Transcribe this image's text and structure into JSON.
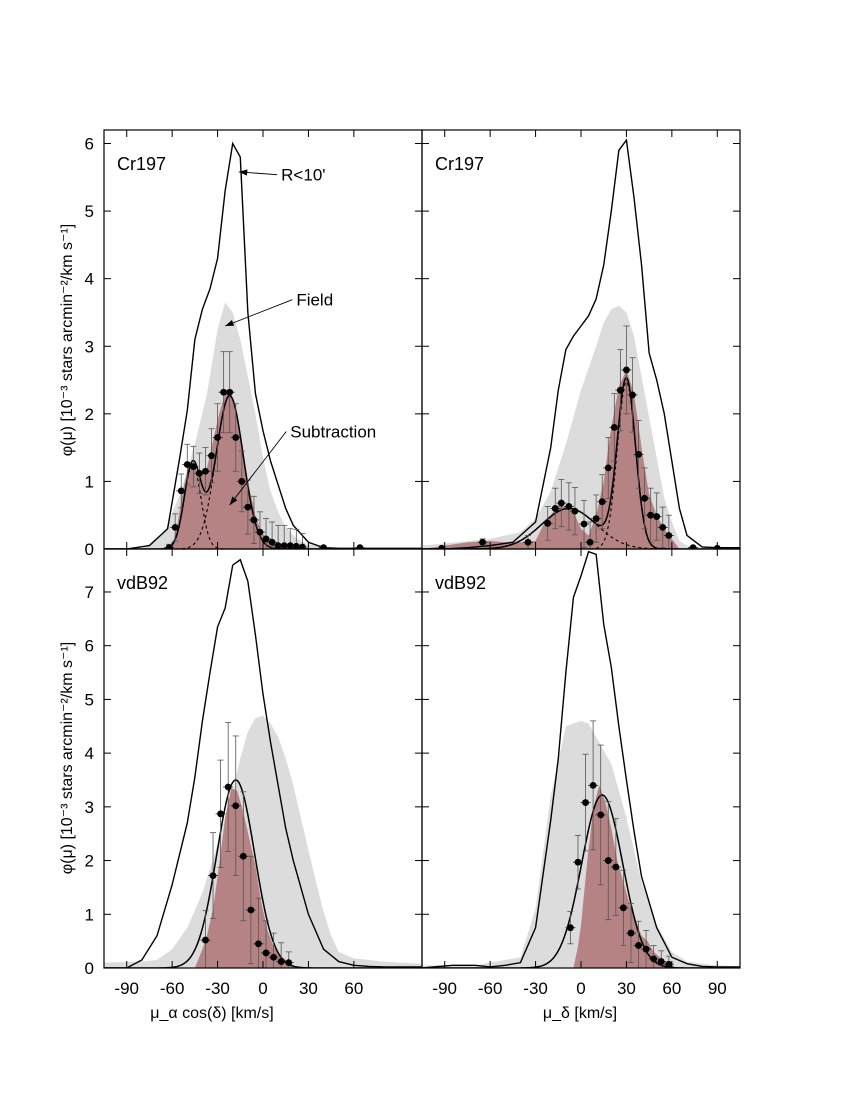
{
  "figure": {
    "ylabel": "φ(μ) [10⁻³ stars arcmin⁻²/km s⁻¹]",
    "xlabel_left": "μ_α cos(δ) [km/s]",
    "xlabel_right": "μ_δ [km/s]"
  },
  "chart_data": [
    {
      "id": "cr197-pmra",
      "type": "line",
      "cluster_label": "Cr197",
      "xlim": [
        -105,
        105
      ],
      "ylim": [
        0,
        6.2
      ],
      "xticks": [
        -90,
        -60,
        -30,
        0,
        30,
        60
      ],
      "yticks": [
        0,
        1,
        2,
        3,
        4,
        5,
        6
      ],
      "annotations": [
        {
          "text": "R<10'",
          "tx": 12,
          "ty": 5.45,
          "ax": -16,
          "ay": 5.58
        },
        {
          "text": "Field",
          "tx": 22,
          "ty": 3.6,
          "ax": -25,
          "ay": 3.3
        },
        {
          "text": "Subtraction",
          "tx": 18,
          "ty": 1.65,
          "ax": -22,
          "ay": 0.65
        }
      ],
      "field": {
        "x": [
          -105,
          -80,
          -65,
          -55,
          -45,
          -37,
          -30,
          -25,
          -20,
          -15,
          -10,
          -5,
          0,
          5,
          10,
          15,
          20,
          25,
          30,
          40,
          50,
          60,
          70,
          80,
          90,
          105
        ],
        "y": [
          0,
          0,
          0.25,
          0.8,
          1.55,
          2.3,
          3.25,
          3.65,
          3.5,
          3.1,
          2.55,
          2.0,
          1.35,
          0.85,
          0.55,
          0.32,
          0.2,
          0.12,
          0.07,
          0.03,
          0.02,
          0.01,
          0,
          0,
          0,
          0
        ]
      },
      "total": {
        "x": [
          -105,
          -90,
          -75,
          -63,
          -55,
          -50,
          -45,
          -40,
          -35,
          -30,
          -25,
          -20,
          -15,
          -10,
          -5,
          0,
          5,
          10,
          15,
          20,
          30,
          40,
          50,
          60,
          70,
          80,
          90,
          105
        ],
        "y": [
          0,
          0,
          0.05,
          0.3,
          1.35,
          2.05,
          3.1,
          3.55,
          3.85,
          4.3,
          5.3,
          6.0,
          5.8,
          3.5,
          2.3,
          1.75,
          1.3,
          0.95,
          0.6,
          0.35,
          0.1,
          0.02,
          0.01,
          0.01,
          0.01,
          0.01,
          0.01,
          0.01
        ]
      },
      "subtraction": {
        "x": [
          -65,
          -60,
          -57,
          -53,
          -49,
          -45,
          -41,
          -37,
          -33,
          -29,
          -25,
          -21,
          -17,
          -13,
          -9,
          -5,
          -1,
          5,
          10,
          20,
          30,
          40,
          50,
          60,
          65
        ],
        "y": [
          0,
          0.05,
          0.3,
          0.85,
          1.25,
          1.2,
          1.1,
          1.2,
          1.6,
          2.0,
          2.3,
          2.3,
          1.95,
          1.4,
          0.9,
          0.5,
          0.25,
          0.1,
          0.05,
          0.02,
          0.01,
          0.01,
          0.01,
          0,
          0
        ]
      },
      "fit_components": [
        {
          "mu": -46.5,
          "sigma": 5.5,
          "amp": 1.25
        },
        {
          "mu": -22.0,
          "sigma": 9.0,
          "amp": 2.27
        }
      ],
      "points": {
        "x": [
          -62,
          -58,
          -54,
          -50,
          -46,
          -42,
          -38,
          -34,
          -30,
          -26,
          -22,
          -18,
          -14,
          -10,
          -6,
          -2,
          2,
          6,
          10,
          14,
          18,
          22,
          26,
          40,
          64
        ],
        "y": [
          0.02,
          0.32,
          0.86,
          1.25,
          1.22,
          1.12,
          1.15,
          1.38,
          1.65,
          2.32,
          2.32,
          1.65,
          1.0,
          0.62,
          0.43,
          0.25,
          0.15,
          0.1,
          0.05,
          0.05,
          0.05,
          0.04,
          0.03,
          0.02,
          0.02
        ],
        "err": [
          0.05,
          0.2,
          0.25,
          0.3,
          0.3,
          0.3,
          0.35,
          0.4,
          0.5,
          0.6,
          0.6,
          0.5,
          0.45,
          0.4,
          0.35,
          0.3,
          0.3,
          0.3,
          0.3,
          0.3,
          0.25,
          0.25,
          0.2,
          0,
          0
        ]
      }
    },
    {
      "id": "cr197-pmdec",
      "type": "line",
      "cluster_label": "Cr197",
      "xlim": [
        -105,
        105
      ],
      "ylim": [
        0,
        6.2
      ],
      "xticks": [
        -90,
        -60,
        -30,
        0,
        30,
        60,
        90
      ],
      "yticks": [
        0,
        1,
        2,
        3,
        4,
        5,
        6
      ],
      "annotations": [],
      "field": {
        "x": [
          -105,
          -60,
          -40,
          -30,
          -20,
          -10,
          0,
          10,
          15,
          20,
          25,
          30,
          35,
          40,
          45,
          50,
          55,
          60,
          65,
          70,
          80,
          105
        ],
        "y": [
          0.05,
          0.15,
          0.25,
          0.45,
          0.85,
          1.55,
          2.35,
          3.0,
          3.35,
          3.55,
          3.6,
          3.5,
          3.15,
          2.55,
          1.95,
          1.35,
          0.75,
          0.4,
          0.12,
          0.05,
          0.02,
          0.02
        ]
      },
      "total": {
        "x": [
          -105,
          -90,
          -75,
          -60,
          -45,
          -30,
          -20,
          -15,
          -10,
          -5,
          0,
          5,
          10,
          15,
          20,
          25,
          30,
          35,
          40,
          45,
          50,
          55,
          60,
          65,
          70,
          80,
          90,
          105
        ],
        "y": [
          0,
          0,
          0.02,
          0.05,
          0.1,
          0.4,
          1.5,
          2.35,
          2.95,
          3.15,
          3.3,
          3.45,
          3.7,
          4.2,
          5.0,
          5.9,
          6.05,
          5.2,
          4.2,
          2.9,
          2.5,
          2.0,
          1.3,
          0.6,
          0.2,
          0.03,
          0.02,
          0.02
        ]
      },
      "subtraction": {
        "x": [
          -105,
          -90,
          -75,
          -60,
          -50,
          -40,
          -30,
          -25,
          -20,
          -15,
          -10,
          -5,
          0,
          5,
          10,
          15,
          20,
          25,
          30,
          35,
          40,
          45,
          50,
          55,
          60,
          65,
          105
        ],
        "y": [
          0,
          0.05,
          0.1,
          0.12,
          0.1,
          0.1,
          0.12,
          0.35,
          0.5,
          0.65,
          0.62,
          0.55,
          0.3,
          0.2,
          0.5,
          1.0,
          1.8,
          2.4,
          2.65,
          2.3,
          1.5,
          0.8,
          0.5,
          0.3,
          0.15,
          0,
          0
        ]
      },
      "fit_components": [
        {
          "mu": -8.0,
          "sigma": 18.0,
          "amp": 0.6
        },
        {
          "mu": 30.0,
          "sigma": 6.0,
          "amp": 2.47
        }
      ],
      "points": {
        "x": [
          -92,
          -65,
          -35,
          -22,
          -17,
          -13,
          -8,
          -4,
          2,
          6,
          10,
          14,
          18,
          22,
          26,
          30,
          34,
          38,
          42,
          46,
          50,
          54,
          58,
          74,
          90
        ],
        "y": [
          0.01,
          0.1,
          0.1,
          0.38,
          0.6,
          0.68,
          0.63,
          0.56,
          0.37,
          0.1,
          0.45,
          0.7,
          1.2,
          1.8,
          2.35,
          2.65,
          2.28,
          1.4,
          0.75,
          0.5,
          0.48,
          0.32,
          0.2,
          0.02,
          0.01
        ],
        "err": [
          0,
          0.05,
          0.1,
          0.25,
          0.3,
          0.35,
          0.35,
          0.35,
          0.35,
          0.3,
          0.35,
          0.4,
          0.45,
          0.5,
          0.6,
          0.65,
          0.55,
          0.5,
          0.45,
          0.4,
          0.35,
          0.3,
          0.3,
          0,
          0
        ]
      }
    },
    {
      "id": "vdb92-pmra",
      "type": "line",
      "cluster_label": "vdB92",
      "xlim": [
        -105,
        105
      ],
      "ylim": [
        0,
        7.8
      ],
      "xticks": [
        -90,
        -60,
        -30,
        0,
        30,
        60
      ],
      "yticks": [
        0,
        1,
        2,
        3,
        4,
        5,
        6,
        7
      ],
      "annotations": [],
      "field": {
        "x": [
          -105,
          -80,
          -70,
          -60,
          -50,
          -40,
          -30,
          -20,
          -15,
          -10,
          -5,
          0,
          5,
          10,
          15,
          20,
          25,
          30,
          35,
          40,
          45,
          50,
          60,
          70,
          80,
          90,
          105
        ],
        "y": [
          0.1,
          0.12,
          0.15,
          0.35,
          0.75,
          1.4,
          2.3,
          3.3,
          3.9,
          4.4,
          4.65,
          4.7,
          4.55,
          4.3,
          3.9,
          3.4,
          2.8,
          2.2,
          1.6,
          1.05,
          0.6,
          0.3,
          0.18,
          0.15,
          0.12,
          0.1,
          0.08
        ]
      },
      "total": {
        "x": [
          -105,
          -90,
          -80,
          -70,
          -60,
          -50,
          -45,
          -40,
          -35,
          -30,
          -25,
          -20,
          -15,
          -10,
          -5,
          0,
          5,
          10,
          15,
          20,
          30,
          40,
          50,
          60,
          70,
          80,
          90,
          105
        ],
        "y": [
          0,
          0,
          0.15,
          0.6,
          1.55,
          2.7,
          3.55,
          4.6,
          5.5,
          6.35,
          6.7,
          7.5,
          7.6,
          7.2,
          6.2,
          5.1,
          4.2,
          3.4,
          2.6,
          2.0,
          1.0,
          0.35,
          0.12,
          0.05,
          0.03,
          0.02,
          0.02,
          0.02
        ]
      },
      "subtraction": {
        "x": [
          -45,
          -40,
          -37,
          -33,
          -29,
          -25,
          -21,
          -17,
          -13,
          -9,
          -5,
          -1,
          3,
          7,
          11,
          15,
          19,
          21
        ],
        "y": [
          0,
          0.35,
          0.6,
          1.1,
          1.9,
          2.8,
          3.35,
          3.3,
          2.9,
          2.4,
          1.9,
          1.2,
          0.7,
          0.4,
          0.25,
          0.15,
          0.08,
          0
        ]
      },
      "fit_components": [
        {
          "mu": -18.0,
          "sigma": 12.5,
          "amp": 3.5
        }
      ],
      "points": {
        "x": [
          -38,
          -33,
          -28,
          -23,
          -18,
          -13,
          -8,
          -3,
          2,
          7,
          12,
          17
        ],
        "y": [
          0.52,
          1.72,
          2.87,
          3.37,
          3.02,
          2.08,
          1.08,
          0.45,
          0.28,
          0.2,
          0.12,
          0.1
        ],
        "err": [
          0.55,
          0.8,
          1.0,
          1.2,
          1.3,
          1.2,
          1.0,
          0.85,
          0.6,
          0.45,
          0.35,
          0.2
        ]
      }
    },
    {
      "id": "vdb92-pmdec",
      "type": "line",
      "cluster_label": "vdB92",
      "xlim": [
        -105,
        105
      ],
      "ylim": [
        0,
        7.8
      ],
      "xticks": [
        -90,
        -60,
        -30,
        0,
        30,
        60,
        90
      ],
      "yticks": [
        0,
        1,
        2,
        3,
        4,
        5,
        6,
        7
      ],
      "annotations": [],
      "field": {
        "x": [
          -105,
          -70,
          -60,
          -40,
          -30,
          -20,
          -10,
          0,
          5,
          10,
          20,
          30,
          40,
          50,
          60,
          70,
          80,
          90,
          105
        ],
        "y": [
          0.05,
          0.05,
          0.1,
          0.2,
          1.1,
          3.2,
          4.5,
          4.6,
          4.55,
          4.3,
          3.8,
          2.8,
          1.6,
          0.8,
          0.3,
          0.12,
          0.08,
          0.05,
          0.03
        ]
      },
      "total": {
        "x": [
          -105,
          -85,
          -70,
          -60,
          -50,
          -40,
          -30,
          -20,
          -15,
          -10,
          -5,
          0,
          5,
          10,
          15,
          20,
          25,
          30,
          35,
          40,
          50,
          60,
          70,
          80,
          90,
          105
        ],
        "y": [
          0,
          0.05,
          0.05,
          0.02,
          0.05,
          0.1,
          0.75,
          2.75,
          3.9,
          5.5,
          6.9,
          7.3,
          7.75,
          7.7,
          6.4,
          5.6,
          4.5,
          3.5,
          2.55,
          1.7,
          0.75,
          0.2,
          0.08,
          0.03,
          0.02,
          0.02
        ]
      },
      "subtraction": {
        "x": [
          -5,
          -2,
          0,
          4,
          8,
          12,
          16,
          20,
          24,
          28,
          32,
          36,
          40,
          44,
          48,
          52,
          56,
          60,
          63
        ],
        "y": [
          0,
          0.4,
          0.8,
          1.95,
          2.95,
          3.4,
          3.1,
          2.6,
          2.0,
          1.6,
          1.2,
          0.9,
          0.6,
          0.5,
          0.3,
          0.2,
          0.1,
          0.05,
          0
        ]
      },
      "fit_components": [
        {
          "mu": 14.0,
          "sigma": 13.5,
          "amp": 3.22
        }
      ],
      "points": {
        "x": [
          -7,
          -2,
          3,
          8,
          13,
          18,
          23,
          28,
          33,
          38,
          43,
          48,
          53,
          58
        ],
        "y": [
          0.75,
          1.97,
          3.08,
          3.4,
          2.85,
          2.0,
          1.88,
          1.12,
          0.65,
          0.42,
          0.35,
          0.17,
          0.12,
          0.07
        ],
        "err": [
          0.3,
          0.5,
          0.9,
          1.2,
          1.3,
          1.1,
          0.9,
          0.7,
          0.55,
          0.45,
          0.35,
          0.25,
          0.2,
          0.15
        ]
      }
    }
  ]
}
